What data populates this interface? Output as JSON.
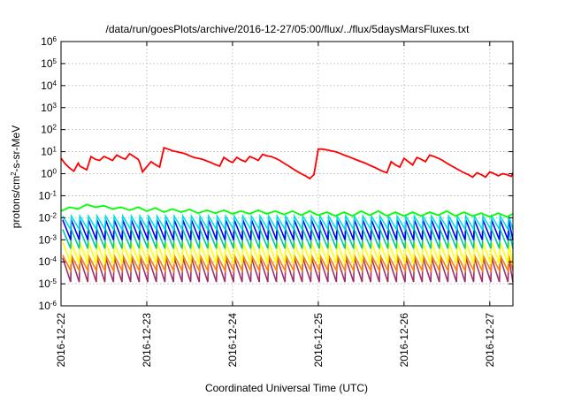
{
  "chart_data": {
    "type": "line",
    "title": "/data/run/goesPlots/archive/2016-12-27/05:00/flux/../flux/5daysMarsFluxes.txt",
    "xlabel": "Coordinated Universal Time (UTC)",
    "ylabel": {
      "prefix": "protons/cm",
      "sup": "2",
      "suffix": "-s-sr-MeV"
    },
    "xlim": [
      0,
      5.27
    ],
    "x_ticks": [
      {
        "x": 0,
        "label": "2016-12-22"
      },
      {
        "x": 1,
        "label": "2016-12-23"
      },
      {
        "x": 2,
        "label": "2016-12-24"
      },
      {
        "x": 3,
        "label": "2016-12-25"
      },
      {
        "x": 4,
        "label": "2016-12-26"
      },
      {
        "x": 5,
        "label": "2016-12-27"
      }
    ],
    "y_scale": "log",
    "ylim": [
      1e-06,
      1000000.0
    ],
    "y_ticks": [
      {
        "exp": 6,
        "label": "10",
        "sup": "6"
      },
      {
        "exp": 5,
        "label": "10",
        "sup": "5"
      },
      {
        "exp": 4,
        "label": "10",
        "sup": "4"
      },
      {
        "exp": 3,
        "label": "10",
        "sup": "3"
      },
      {
        "exp": 2,
        "label": "10",
        "sup": "2"
      },
      {
        "exp": 1,
        "label": "10",
        "sup": "1"
      },
      {
        "exp": 0,
        "label": "10",
        "sup": "0"
      },
      {
        "exp": -1,
        "label": "10",
        "sup": "-1"
      },
      {
        "exp": -2,
        "label": "10",
        "sup": "-2"
      },
      {
        "exp": -3,
        "label": "10",
        "sup": "-3"
      },
      {
        "exp": -4,
        "label": "10",
        "sup": "-4"
      },
      {
        "exp": -5,
        "label": "10",
        "sup": "-5"
      },
      {
        "exp": -6,
        "label": "10",
        "sup": "-6"
      }
    ],
    "grid": true,
    "series": [
      {
        "color": "#ff0000",
        "x": [
          0,
          0.05,
          0.1,
          0.15,
          0.2,
          0.22,
          0.3,
          0.35,
          0.4,
          0.45,
          0.5,
          0.55,
          0.6,
          0.65,
          0.7,
          0.75,
          0.8,
          0.85,
          0.9,
          0.92,
          0.95,
          1.05,
          1.1,
          1.15,
          1.2,
          1.25,
          1.3,
          1.35,
          1.4,
          1.45,
          1.5,
          1.55,
          1.6,
          1.65,
          1.7,
          1.75,
          1.8,
          1.85,
          1.9,
          1.95,
          2.0,
          2.05,
          2.1,
          2.15,
          2.2,
          2.25,
          2.3,
          2.35,
          2.4,
          2.45,
          2.5,
          2.55,
          2.6,
          2.65,
          2.7,
          2.75,
          2.8,
          2.85,
          2.9,
          2.95,
          3.0,
          3.05,
          3.1,
          3.15,
          3.2,
          3.25,
          3.3,
          3.35,
          3.4,
          3.45,
          3.5,
          3.55,
          3.6,
          3.65,
          3.7,
          3.75,
          3.8,
          3.85,
          3.9,
          3.95,
          4.0,
          4.05,
          4.1,
          4.15,
          4.2,
          4.25,
          4.3,
          4.35,
          4.4,
          4.45,
          4.5,
          4.55,
          4.6,
          4.65,
          4.7,
          4.75,
          4.8,
          4.85,
          4.9,
          4.95,
          5.0,
          5.05,
          5.1,
          5.15,
          5.2,
          5.25,
          5.27
        ],
        "y": [
          5,
          2.8,
          1.8,
          1.3,
          3,
          2.2,
          1.5,
          6,
          4.5,
          4,
          6,
          5,
          4,
          7,
          5.5,
          4.5,
          8,
          6,
          4.5,
          3,
          1.2,
          3.5,
          2.6,
          2,
          15,
          13,
          11,
          10,
          9,
          8,
          6.5,
          5.5,
          5,
          4.5,
          3.8,
          3.2,
          2.6,
          2.2,
          5.5,
          4,
          3.2,
          5.5,
          4.2,
          3.5,
          6,
          5,
          4,
          7.5,
          6.5,
          6,
          5,
          4,
          3,
          2.3,
          1.7,
          1.3,
          1,
          0.8,
          0.6,
          0.9,
          13,
          13,
          12,
          11,
          10,
          8.5,
          7,
          6,
          5,
          4.2,
          3.5,
          3,
          2.4,
          2,
          1.6,
          1.3,
          1.1,
          3.5,
          2.5,
          2,
          5,
          3.5,
          2.5,
          5.5,
          4.5,
          3.5,
          7,
          6,
          5,
          4,
          3,
          2.3,
          1.8,
          1.4,
          1.1,
          0.9,
          0.7,
          1.1,
          0.9,
          0.7,
          1.2,
          1,
          0.8,
          1,
          0.9,
          0.75,
          1.1
        ]
      },
      {
        "color": "#00ff00",
        "x": [
          0,
          0.1,
          0.2,
          0.3,
          0.4,
          0.5,
          0.6,
          0.7,
          0.8,
          0.9,
          1.0,
          1.1,
          1.2,
          1.3,
          1.4,
          1.5,
          1.6,
          1.7,
          1.8,
          1.9,
          2.0,
          2.1,
          2.2,
          2.3,
          2.4,
          2.5,
          2.6,
          2.7,
          2.8,
          2.9,
          3.0,
          3.1,
          3.2,
          3.3,
          3.4,
          3.5,
          3.6,
          3.7,
          3.8,
          3.9,
          4.0,
          4.1,
          4.2,
          4.3,
          4.4,
          4.5,
          4.6,
          4.7,
          4.8,
          4.9,
          5.0,
          5.1,
          5.2,
          5.27
        ],
        "y": [
          0.02,
          0.03,
          0.025,
          0.04,
          0.03,
          0.035,
          0.025,
          0.03,
          0.022,
          0.03,
          0.02,
          0.028,
          0.018,
          0.025,
          0.018,
          0.024,
          0.016,
          0.022,
          0.016,
          0.022,
          0.015,
          0.02,
          0.015,
          0.022,
          0.015,
          0.02,
          0.014,
          0.02,
          0.013,
          0.02,
          0.013,
          0.018,
          0.012,
          0.018,
          0.012,
          0.02,
          0.013,
          0.02,
          0.012,
          0.018,
          0.012,
          0.018,
          0.012,
          0.018,
          0.013,
          0.02,
          0.012,
          0.018,
          0.012,
          0.016,
          0.011,
          0.016,
          0.011,
          0.015
        ]
      }
    ],
    "periodic_series": [
      {
        "color": "#00e0e0",
        "period": 0.1,
        "high": 0.012,
        "low": 0.003
      },
      {
        "color": "#0000ff",
        "period": 0.1,
        "high": 0.008,
        "low": 0.001
      },
      {
        "color": "#00c8a0",
        "period": 0.1,
        "high": 0.003,
        "low": 0.0004
      },
      {
        "color": "#ffff00",
        "period": 0.1,
        "high": 0.0008,
        "low": 8e-05
      },
      {
        "color": "#ff7f00",
        "period": 0.1,
        "high": 0.0002,
        "low": 4e-05
      },
      {
        "color": "#a0306a",
        "period": 0.1,
        "high": 0.00015,
        "low": 1.2e-05
      }
    ]
  }
}
